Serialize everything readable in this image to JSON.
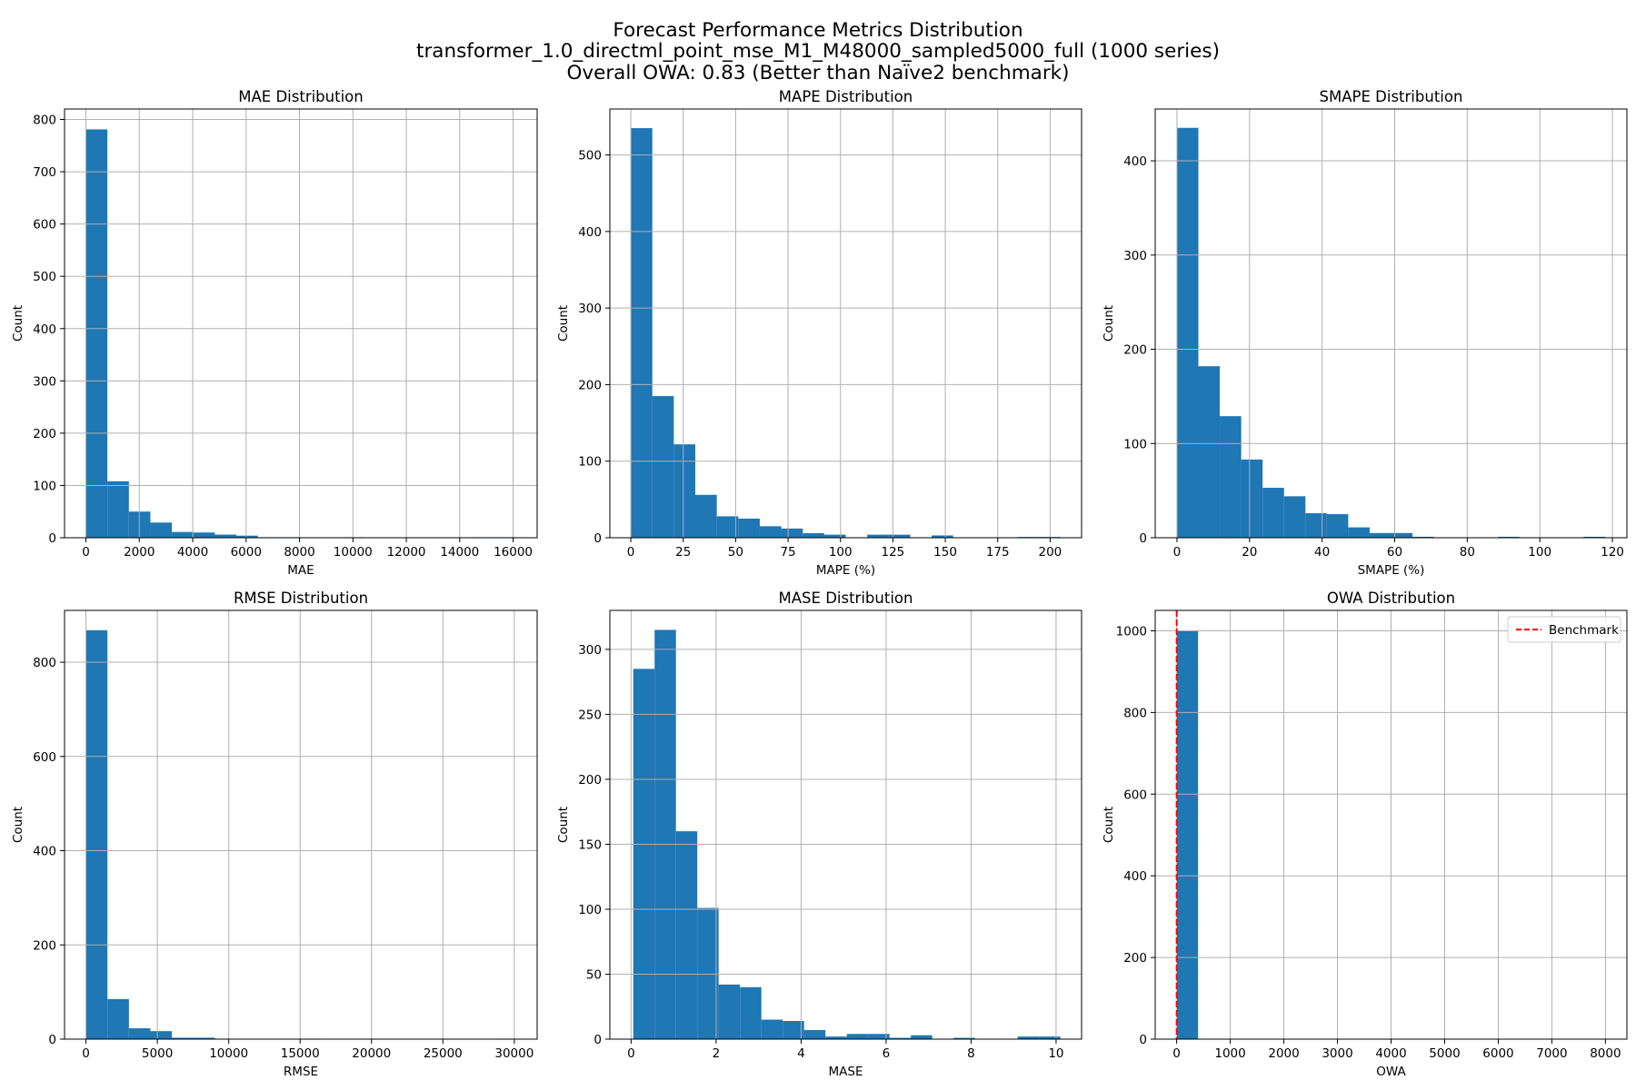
{
  "figure": {
    "title_lines": [
      "Forecast Performance Metrics Distribution",
      "transformer_1.0_directml_point_mse_M1_M48000_sampled5000_full (1000 series)",
      "Overall OWA: 0.83 (Better than Naïve2 benchmark)"
    ]
  },
  "chart_data": [
    {
      "type": "bar",
      "title": "MAE Distribution",
      "xlabel": "MAE",
      "ylabel": "Count",
      "xlim": [
        -800,
        16900
      ],
      "ylim": [
        0,
        820
      ],
      "xticks": [
        0,
        2000,
        4000,
        6000,
        8000,
        10000,
        12000,
        14000,
        16000
      ],
      "yticks": [
        0,
        100,
        200,
        300,
        400,
        500,
        600,
        700,
        800
      ],
      "grid": true,
      "bar_color": "#1f77b4",
      "bin_edges": [
        0,
        805,
        1610,
        2415,
        3220,
        4025,
        4830,
        5635,
        6440,
        7245,
        8050,
        8855,
        9660,
        10465,
        11270,
        12075,
        12880,
        13685,
        14490,
        15295,
        16100
      ],
      "counts": [
        781,
        108,
        50,
        29,
        11,
        10,
        6,
        4,
        1,
        1,
        0,
        0,
        1,
        0,
        0,
        0,
        0,
        0,
        1,
        1
      ]
    },
    {
      "type": "bar",
      "title": "MAPE Distribution",
      "xlabel": "MAPE (%)",
      "ylabel": "Count",
      "xlim": [
        -10,
        215
      ],
      "ylim": [
        0,
        560
      ],
      "xticks": [
        0,
        25,
        50,
        75,
        100,
        125,
        150,
        175,
        200
      ],
      "yticks": [
        0,
        100,
        200,
        300,
        400,
        500
      ],
      "grid": true,
      "bar_color": "#1f77b4",
      "bin_edges": [
        0,
        10.25,
        20.5,
        30.75,
        41,
        51.25,
        61.5,
        71.75,
        82,
        92.25,
        102.5,
        112.75,
        123,
        133.25,
        143.5,
        153.75,
        164,
        174.25,
        184.5,
        194.75,
        205
      ],
      "counts": [
        535,
        185,
        122,
        56,
        28,
        25,
        15,
        12,
        6,
        4,
        0,
        4,
        4,
        0,
        3,
        0,
        0,
        0,
        1,
        1
      ]
    },
    {
      "type": "bar",
      "title": "SMAPE Distribution",
      "xlabel": "SMAPE (%)",
      "ylabel": "Count",
      "xlim": [
        -6,
        124
      ],
      "ylim": [
        0,
        455
      ],
      "xticks": [
        0,
        20,
        40,
        60,
        80,
        100,
        120
      ],
      "yticks": [
        0,
        100,
        200,
        300,
        400
      ],
      "grid": true,
      "bar_color": "#1f77b4",
      "bin_edges": [
        0,
        5.9,
        11.8,
        17.7,
        23.6,
        29.5,
        35.4,
        41.3,
        47.2,
        53.1,
        59,
        64.9,
        70.8,
        76.7,
        82.6,
        88.5,
        94.4,
        100.3,
        106.2,
        112.1,
        118
      ],
      "counts": [
        435,
        182,
        129,
        83,
        53,
        44,
        26,
        25,
        11,
        5,
        5,
        1,
        0,
        0,
        0,
        1,
        0,
        0,
        0,
        1
      ]
    },
    {
      "type": "bar",
      "title": "RMSE Distribution",
      "xlabel": "RMSE",
      "ylabel": "Count",
      "xlim": [
        -1500,
        31600
      ],
      "ylim": [
        0,
        910
      ],
      "xticks": [
        0,
        5000,
        10000,
        15000,
        20000,
        25000,
        30000
      ],
      "yticks": [
        0,
        200,
        400,
        600,
        800
      ],
      "grid": true,
      "bar_color": "#1f77b4",
      "bin_edges": [
        0,
        1505,
        3010,
        4515,
        6020,
        7525,
        9030,
        10535,
        12040,
        13545,
        15050,
        16555,
        18060,
        19565,
        21070,
        22575,
        24080,
        25585,
        27090,
        28595,
        30100
      ],
      "counts": [
        868,
        85,
        23,
        17,
        3,
        3,
        1,
        0,
        0,
        0,
        1,
        0,
        0,
        0,
        0,
        0,
        0,
        0,
        0,
        1
      ]
    },
    {
      "type": "bar",
      "title": "MASE Distribution",
      "xlabel": "MASE",
      "ylabel": "Count",
      "xlim": [
        -0.5,
        10.6
      ],
      "ylim": [
        0,
        330
      ],
      "xticks": [
        0,
        2,
        4,
        6,
        8,
        10
      ],
      "yticks": [
        0,
        50,
        100,
        150,
        200,
        250,
        300
      ],
      "grid": true,
      "bar_color": "#1f77b4",
      "bin_edges": [
        0.05,
        0.5525,
        1.055,
        1.5575,
        2.06,
        2.5625,
        3.065,
        3.5675,
        4.07,
        4.5725,
        5.075,
        5.5775,
        6.08,
        6.5825,
        7.085,
        7.5875,
        8.09,
        8.5925,
        9.095,
        9.5975,
        10.1
      ],
      "counts": [
        285,
        315,
        160,
        101,
        42,
        40,
        15,
        14,
        7,
        2,
        4,
        4,
        1,
        3,
        0,
        1,
        0,
        0,
        2,
        2
      ]
    },
    {
      "type": "bar",
      "title": "OWA Distribution",
      "xlabel": "OWA",
      "ylabel": "Count",
      "xlim": [
        -400,
        8400
      ],
      "ylim": [
        0,
        1050
      ],
      "xticks": [
        0,
        1000,
        2000,
        3000,
        4000,
        5000,
        6000,
        7000,
        8000
      ],
      "yticks": [
        0,
        200,
        400,
        600,
        800,
        1000
      ],
      "grid": true,
      "bar_color": "#1f77b4",
      "bin_edges": [
        0,
        400,
        800,
        1200,
        1600,
        2000,
        2400,
        2800,
        3200,
        3600,
        4000,
        4400,
        4800,
        5200,
        5600,
        6000,
        6400,
        6800,
        7200,
        7600,
        8000
      ],
      "counts": [
        999,
        0,
        0,
        0,
        0,
        0,
        0,
        0,
        0,
        0,
        0,
        0,
        0,
        0,
        0,
        0,
        0,
        0,
        0,
        1
      ],
      "benchmark": {
        "x": 1,
        "label": "Benchmark",
        "color": "#ff0000",
        "style": "dashed"
      },
      "legend": {
        "position": "top-right",
        "entries": [
          "Benchmark"
        ]
      }
    }
  ]
}
